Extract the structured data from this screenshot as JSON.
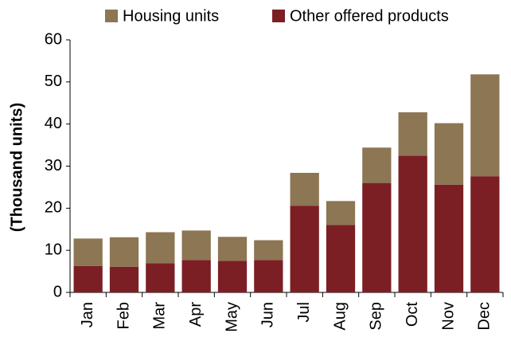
{
  "chart_data": {
    "type": "stacked_bar",
    "y_label": "(Thousand units)",
    "categories": [
      "Jan",
      "Feb",
      "Mar",
      "Apr",
      "May",
      "Jun",
      "Jul",
      "Aug",
      "Sep",
      "Oct",
      "Nov",
      "Dec"
    ],
    "series": [
      {
        "name": "Housing units",
        "color": "#8c7653",
        "values": [
          6.5,
          7.0,
          7.4,
          7.0,
          5.7,
          4.7,
          7.8,
          5.7,
          8.4,
          10.3,
          14.6,
          24.2
        ]
      },
      {
        "name": "Other offered products",
        "color": "#7b1f24",
        "values": [
          6.3,
          6.1,
          6.9,
          7.7,
          7.5,
          7.7,
          20.6,
          16.0,
          26.0,
          32.5,
          25.6,
          27.6
        ]
      }
    ],
    "ylim": [
      0,
      60
    ],
    "yticks": [
      0,
      10,
      20,
      30,
      40,
      50,
      60
    ]
  }
}
